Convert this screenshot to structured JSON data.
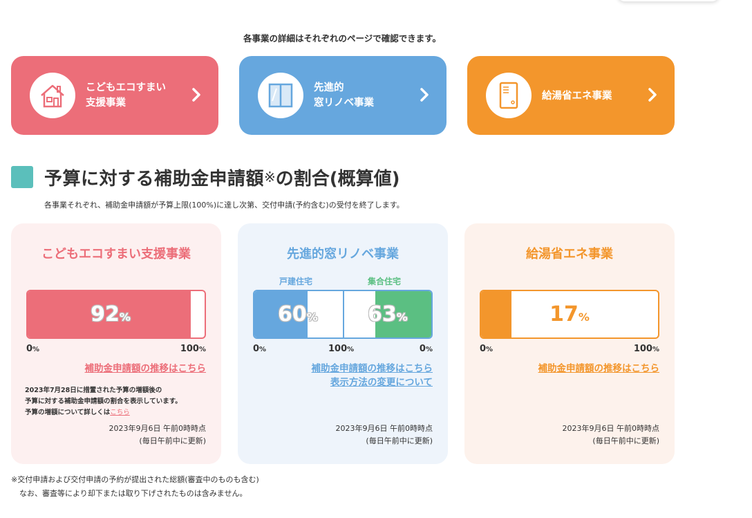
{
  "intro": "各事業の詳細はそれぞれのページで確認できます。",
  "nav": [
    {
      "label": "こどもエコすまい\n支援事業",
      "icon": "house-icon",
      "color": "#ec6e79"
    },
    {
      "label": "先進的\n窓リノベ事業",
      "icon": "window-icon",
      "color": "#66a7de"
    },
    {
      "label": "給湯省エネ事業",
      "icon": "water-heater-icon",
      "color": "#f3962c"
    }
  ],
  "section": {
    "title": "予算に対する補助金申請額",
    "mark": "※",
    "title_suffix": "の割合(概算値)",
    "subtitle": "各事業それぞれ、補助金申請額が予算上限(100%)に達し次第、交付申請(予約含む)の受付を終了します。"
  },
  "panels": {
    "kodomo": {
      "title": "こどもエコすまい支援事業",
      "percent": 92,
      "percent_text": "92",
      "unit": "%",
      "axis_min": "0",
      "axis_max": "100",
      "link": "補助金申請額の推移はこちら",
      "note_lines": [
        "2023年7月28日に措置された予算の増額後の",
        "予算に対する補助金申請額の割合を表示しています。"
      ],
      "note_pre_link": "予算の増額について詳しくは",
      "note_link": "こちら",
      "stamp": "2023年9月6日 午前0時時点",
      "stamp2": "(毎日午前中に更新)"
    },
    "mado": {
      "title": "先進的窓リノベ事業",
      "left_label": "戸建住宅",
      "right_label": "集合住宅",
      "left_percent": 60,
      "left_text": "60",
      "right_percent": 63,
      "right_text": "63",
      "unit": "%",
      "axis_left_min": "0",
      "axis_mid": "100",
      "axis_right_min": "0",
      "link": "補助金申請額の推移はこちら",
      "link2": "表示方法の変更について",
      "stamp": "2023年9月6日 午前0時時点",
      "stamp2": "(毎日午前中に更新)"
    },
    "kyuto": {
      "title": "給湯省エネ事業",
      "percent": 17,
      "percent_text": "17",
      "unit": "%",
      "axis_min": "0",
      "axis_max": "100",
      "link": "補助金申請額の推移はこちら",
      "stamp": "2023年9月6日 午前0時時点",
      "stamp2": "(毎日午前中に更新)"
    }
  },
  "footnote": {
    "line1": "※交付申請および交付申請の予約が提出された総額(審査中のものも含む)",
    "line2": "なお、審査等により却下または取り下げされたものは含みません。"
  },
  "colors": {
    "pink": "#ec6e79",
    "blue": "#66a7de",
    "green": "#5bbf82",
    "orange": "#f3962c",
    "teal": "#5bbfbb"
  }
}
